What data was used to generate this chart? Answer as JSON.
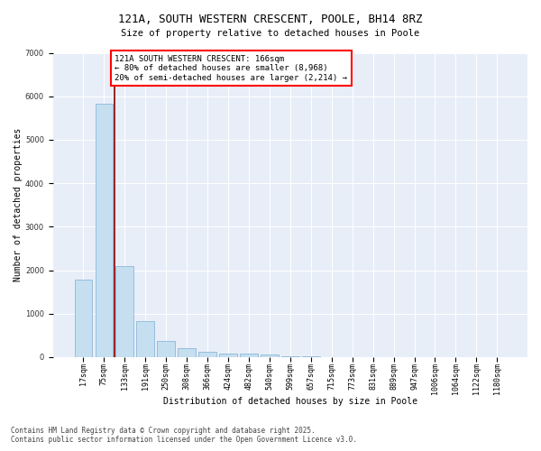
{
  "title": "121A, SOUTH WESTERN CRESCENT, POOLE, BH14 8RZ",
  "subtitle": "Size of property relative to detached houses in Poole",
  "xlabel": "Distribution of detached houses by size in Poole",
  "ylabel": "Number of detached properties",
  "categories": [
    "17sqm",
    "75sqm",
    "133sqm",
    "191sqm",
    "250sqm",
    "308sqm",
    "366sqm",
    "424sqm",
    "482sqm",
    "540sqm",
    "599sqm",
    "657sqm",
    "715sqm",
    "773sqm",
    "831sqm",
    "889sqm",
    "947sqm",
    "1006sqm",
    "1064sqm",
    "1122sqm",
    "1180sqm"
  ],
  "values": [
    1780,
    5820,
    2090,
    820,
    370,
    210,
    130,
    90,
    75,
    55,
    30,
    15,
    8,
    5,
    4,
    3,
    3,
    2,
    2,
    2,
    2
  ],
  "bar_color": "#c5dff0",
  "bar_edge_color": "#7bafd4",
  "vline_x_index": 1.5,
  "vline_color": "#8b0000",
  "annotation_text": "121A SOUTH WESTERN CRESCENT: 166sqm\n← 80% of detached houses are smaller (8,968)\n20% of semi-detached houses are larger (2,214) →",
  "annotation_box_color": "white",
  "annotation_box_edge_color": "red",
  "ylim": [
    0,
    7000
  ],
  "yticks": [
    0,
    1000,
    2000,
    3000,
    4000,
    5000,
    6000,
    7000
  ],
  "bg_color": "#e8eef8",
  "grid_color": "white",
  "footer": "Contains HM Land Registry data © Crown copyright and database right 2025.\nContains public sector information licensed under the Open Government Licence v3.0.",
  "title_fontsize": 9,
  "subtitle_fontsize": 7.5,
  "axis_label_fontsize": 7,
  "tick_fontsize": 6,
  "annotation_fontsize": 6.5,
  "footer_fontsize": 5.5
}
